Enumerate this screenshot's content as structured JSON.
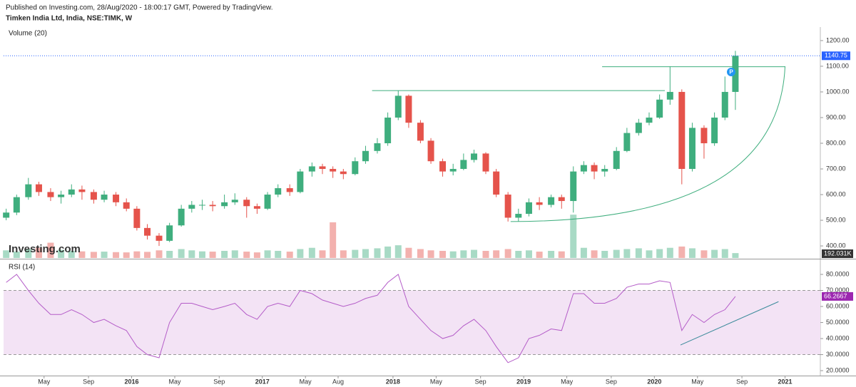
{
  "chart_data": {
    "type": "candlestick",
    "caption": "Published on Investing.com, 28/Aug/2020 - 18:00:17 GMT, Powered by TradingView.",
    "title": "Timken India Ltd, India, NSE:TIMK, W",
    "volume_label": "Volume (20)",
    "watermark": "Investing.com",
    "marker": "P",
    "x": [
      2015.04,
      2015.12,
      2015.21,
      2015.29,
      2015.38,
      2015.46,
      2015.54,
      2015.62,
      2015.71,
      2015.79,
      2015.88,
      2015.96,
      2016.04,
      2016.12,
      2016.21,
      2016.29,
      2016.38,
      2016.46,
      2016.54,
      2016.62,
      2016.71,
      2016.79,
      2016.88,
      2016.96,
      2017.04,
      2017.12,
      2017.21,
      2017.29,
      2017.38,
      2017.46,
      2017.54,
      2017.62,
      2017.71,
      2017.79,
      2017.88,
      2017.96,
      2018.04,
      2018.12,
      2018.21,
      2018.29,
      2018.38,
      2018.46,
      2018.54,
      2018.62,
      2018.71,
      2018.79,
      2018.88,
      2018.96,
      2019.04,
      2019.12,
      2019.21,
      2019.29,
      2019.38,
      2019.46,
      2019.54,
      2019.62,
      2019.71,
      2019.79,
      2019.88,
      2019.96,
      2020.04,
      2020.12,
      2020.21,
      2020.29,
      2020.38,
      2020.46,
      2020.54,
      2020.62
    ],
    "open": [
      510,
      530,
      590,
      640,
      610,
      590,
      600,
      620,
      610,
      580,
      600,
      570,
      545,
      470,
      440,
      420,
      480,
      545,
      560,
      560,
      555,
      570,
      580,
      555,
      545,
      600,
      625,
      610,
      690,
      710,
      700,
      690,
      680,
      730,
      770,
      800,
      900,
      985,
      880,
      810,
      730,
      690,
      700,
      735,
      760,
      690,
      600,
      510,
      525,
      570,
      560,
      590,
      575,
      690,
      715,
      690,
      700,
      770,
      840,
      880,
      900,
      970,
      1000,
      700,
      860,
      800,
      900,
      1000
    ],
    "high": [
      545,
      600,
      665,
      650,
      625,
      615,
      640,
      635,
      620,
      615,
      610,
      585,
      555,
      485,
      450,
      490,
      560,
      575,
      580,
      575,
      600,
      605,
      590,
      565,
      610,
      640,
      640,
      700,
      725,
      720,
      710,
      700,
      745,
      790,
      820,
      920,
      1005,
      990,
      890,
      820,
      740,
      720,
      760,
      775,
      765,
      700,
      610,
      545,
      585,
      590,
      600,
      600,
      710,
      730,
      725,
      715,
      785,
      860,
      895,
      920,
      990,
      1100,
      1010,
      880,
      870,
      920,
      1060,
      1160
    ],
    "low": [
      500,
      520,
      580,
      595,
      575,
      565,
      590,
      580,
      565,
      570,
      555,
      535,
      460,
      425,
      400,
      415,
      475,
      530,
      540,
      535,
      545,
      560,
      510,
      525,
      540,
      590,
      595,
      605,
      670,
      680,
      665,
      660,
      675,
      720,
      760,
      790,
      890,
      860,
      800,
      720,
      670,
      675,
      695,
      725,
      680,
      590,
      495,
      495,
      515,
      540,
      550,
      545,
      530,
      680,
      660,
      670,
      695,
      765,
      830,
      870,
      895,
      950,
      640,
      690,
      740,
      790,
      890,
      930
    ],
    "close": [
      530,
      590,
      640,
      610,
      590,
      600,
      620,
      610,
      580,
      600,
      570,
      545,
      470,
      440,
      420,
      480,
      545,
      560,
      560,
      555,
      570,
      580,
      555,
      545,
      600,
      625,
      610,
      690,
      710,
      700,
      690,
      680,
      730,
      770,
      800,
      900,
      985,
      880,
      810,
      730,
      690,
      700,
      735,
      760,
      690,
      600,
      510,
      525,
      570,
      560,
      590,
      575,
      690,
      715,
      690,
      700,
      770,
      840,
      880,
      900,
      970,
      1000,
      700,
      860,
      800,
      900,
      1000,
      1140.75
    ],
    "up_color": "#3fae7e",
    "down_color": "#e5534b",
    "last_price_color": "#2962ff",
    "ylim": [
      353,
      1247
    ],
    "yticks": [
      {
        "value": 400,
        "label": "400.00"
      },
      {
        "value": 500,
        "label": "500.00"
      },
      {
        "value": 600,
        "label": "600.00"
      },
      {
        "value": 700,
        "label": "700.00"
      },
      {
        "value": 800,
        "label": "800.00"
      },
      {
        "value": 900,
        "label": "900.00"
      },
      {
        "value": 1000,
        "label": "1000.00"
      },
      {
        "value": 1100,
        "label": "1100.00"
      },
      {
        "value": 1200,
        "label": "1200.00"
      }
    ],
    "volume": [
      300,
      250,
      350,
      400,
      600,
      320,
      280,
      260,
      240,
      250,
      230,
      220,
      260,
      240,
      300,
      280,
      350,
      300,
      260,
      250,
      280,
      300,
      250,
      220,
      300,
      280,
      250,
      350,
      400,
      300,
      1400,
      300,
      320,
      350,
      380,
      450,
      500,
      400,
      350,
      300,
      280,
      260,
      300,
      320,
      280,
      300,
      350,
      280,
      300,
      250,
      280,
      260,
      1700,
      400,
      300,
      280,
      320,
      350,
      380,
      300,
      350,
      400,
      450,
      380,
      300,
      320,
      350,
      192.031
    ],
    "volume_value_label": "192.031K",
    "volume_ylim": [
      0,
      9000
    ],
    "lines": [
      {
        "x": [
          2017.84,
          2020.08
        ],
        "y": [
          1005,
          1005
        ]
      },
      {
        "x": [
          2019.6,
          2021.0
        ],
        "y": [
          1098,
          1098
        ]
      }
    ],
    "curve": {
      "x": [
        2018.9,
        2021.0
      ],
      "y": [
        495,
        1100
      ]
    },
    "xlim": [
      2015.02,
      2021.27
    ],
    "xticks": [
      {
        "value": 2015.33,
        "label": "May"
      },
      {
        "value": 2015.67,
        "label": "Sep"
      },
      {
        "value": 2016.0,
        "label": "2016"
      },
      {
        "value": 2016.33,
        "label": "May"
      },
      {
        "value": 2016.67,
        "label": "Sep"
      },
      {
        "value": 2017.0,
        "label": "2017"
      },
      {
        "value": 2017.33,
        "label": "May"
      },
      {
        "value": 2017.58,
        "label": "Aug"
      },
      {
        "value": 2018.0,
        "label": "2018"
      },
      {
        "value": 2018.33,
        "label": "May"
      },
      {
        "value": 2018.67,
        "label": "Sep"
      },
      {
        "value": 2019.0,
        "label": "2019"
      },
      {
        "value": 2019.33,
        "label": "May"
      },
      {
        "value": 2019.67,
        "label": "Sep"
      },
      {
        "value": 2020.0,
        "label": "2020"
      },
      {
        "value": 2020.33,
        "label": "May"
      },
      {
        "value": 2020.67,
        "label": "Sep"
      },
      {
        "value": 2021.0,
        "label": "2021"
      }
    ],
    "rsi": {
      "label": "RSI (14)",
      "color": "#b45cc8",
      "values": [
        75,
        80,
        70,
        62,
        55,
        55,
        58,
        55,
        50,
        52,
        48,
        45,
        35,
        30,
        28,
        50,
        62,
        62,
        60,
        58,
        60,
        62,
        55,
        52,
        60,
        62,
        60,
        70,
        68,
        64,
        62,
        60,
        62,
        65,
        67,
        75,
        80,
        60,
        52,
        45,
        40,
        42,
        48,
        52,
        45,
        35,
        25,
        28,
        40,
        42,
        46,
        45,
        68,
        68,
        62,
        62,
        65,
        72,
        74,
        74,
        76,
        75,
        45,
        55,
        50,
        55,
        58,
        66.2667
      ],
      "ylim": [
        17.8,
        88
      ],
      "yticks": [
        {
          "value": 20,
          "label": "20.0000"
        },
        {
          "value": 30,
          "label": "30.0000"
        },
        {
          "value": 40,
          "label": "40.0000"
        },
        {
          "value": 50,
          "label": "50.0000"
        },
        {
          "value": 60,
          "label": "60.0000"
        },
        {
          "value": 70,
          "label": "70.0000"
        },
        {
          "value": 80,
          "label": "80.0000"
        }
      ],
      "bands": [
        30,
        70
      ],
      "trendline": {
        "x": [
          2020.2,
          2020.95
        ],
        "y": [
          36,
          63
        ]
      }
    }
  }
}
